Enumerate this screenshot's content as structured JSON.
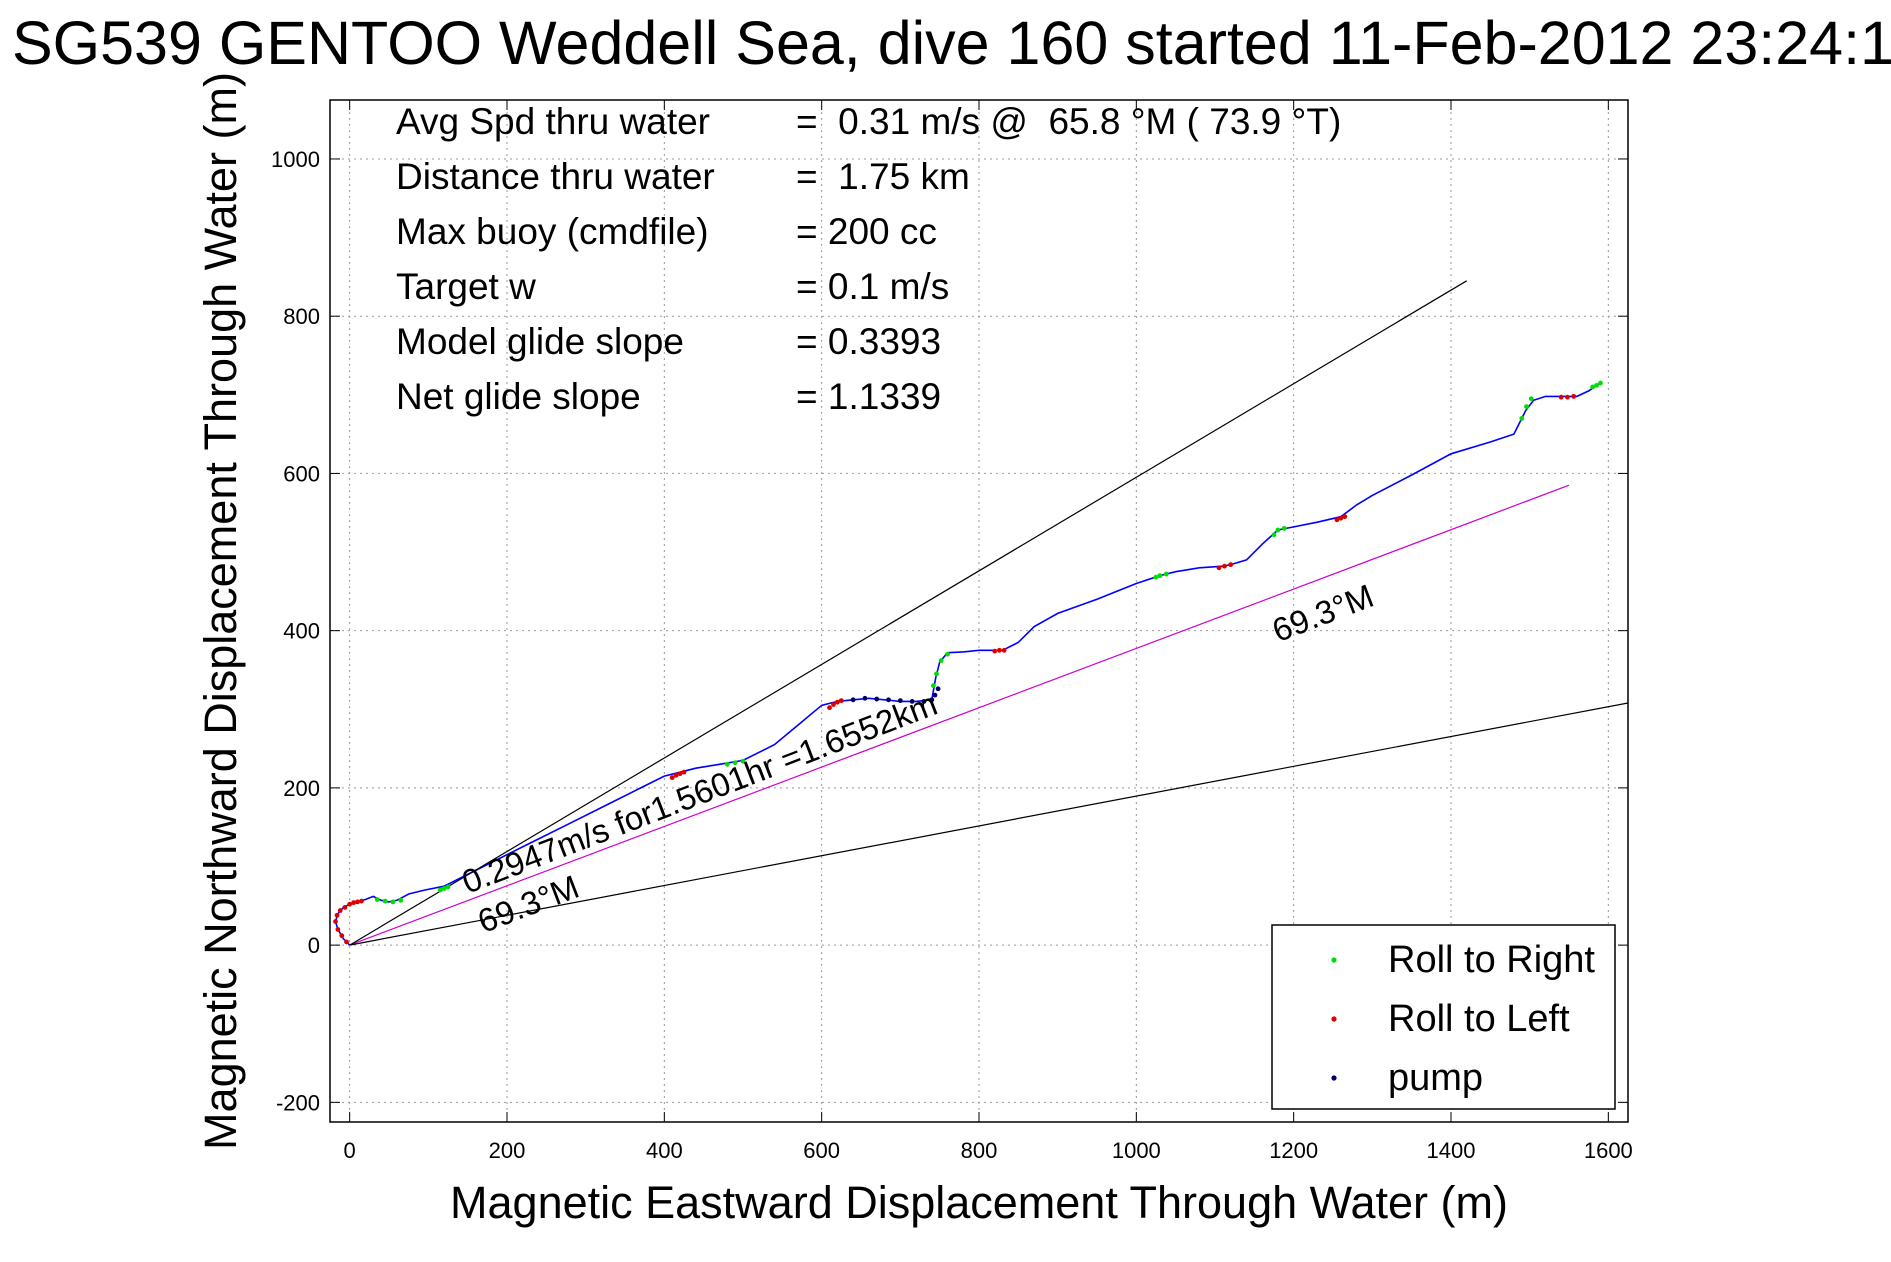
{
  "chart_data": {
    "type": "scatter",
    "title": "SG539 GENTOO Weddell Sea, dive 160 started 11-Feb-2012 23:24:1",
    "xlabel": "Magnetic Eastward Displacement Through Water (m)",
    "ylabel": "Magnetic Northward Displacement Through Water (m)",
    "xlim": [
      -25,
      1625
    ],
    "ylim": [
      -225,
      1075
    ],
    "xticks": [
      0,
      200,
      400,
      600,
      800,
      1000,
      1200,
      1400,
      1600
    ],
    "yticks": [
      -200,
      0,
      200,
      400,
      600,
      800,
      1000
    ],
    "grid": true,
    "legend": {
      "location": "bottom-right",
      "entries": [
        {
          "label": "Roll to Right",
          "color": "#00dd00"
        },
        {
          "label": "Roll to Left",
          "color": "#dd0000"
        },
        {
          "label": "pump",
          "color": "#000066"
        }
      ]
    },
    "stats": [
      {
        "label": "Avg Spd thru water",
        "value": "=  0.31 m/s @  65.8 °M ( 73.9 °T)"
      },
      {
        "label": "Distance thru water",
        "value": "=  1.75 km"
      },
      {
        "label": "Max buoy (cmdfile)",
        "value": "= 200 cc"
      },
      {
        "label": "Target w",
        "value": "= 0.1 m/s"
      },
      {
        "label": "Model glide slope",
        "value": "= 0.3393"
      },
      {
        "label": "Net glide slope",
        "value": "= 1.1339"
      }
    ],
    "annotations": [
      {
        "text": "0.2947m/s for1.5601hr =1.6552km",
        "x": 150,
        "y": 65,
        "angle_deg": 21
      },
      {
        "text": "69.3°M",
        "x": 170,
        "y": 15,
        "angle_deg": 21
      },
      {
        "text": "69.3°M",
        "x": 1180,
        "y": 385,
        "angle_deg": 21
      }
    ],
    "series": [
      {
        "style": "line",
        "color": "#0000ff",
        "x": [
          0,
          -8,
          -15,
          -18,
          -15,
          -8,
          0,
          10,
          20,
          30,
          40,
          50,
          60,
          75,
          95,
          120,
          150,
          190,
          230,
          280,
          330,
          370,
          400,
          420,
          440,
          470,
          500,
          540,
          570,
          600,
          620,
          640,
          660,
          680,
          700,
          720,
          740,
          745,
          750,
          760,
          780,
          800,
          830,
          850,
          870,
          900,
          950,
          1000,
          1030,
          1050,
          1080,
          1110,
          1120,
          1140,
          1160,
          1180,
          1200,
          1230,
          1260,
          1280,
          1300,
          1350,
          1400,
          1450,
          1480,
          1495,
          1505,
          1520,
          1540,
          1560,
          1575,
          1590
        ],
        "y": [
          0,
          8,
          20,
          30,
          40,
          48,
          52,
          55,
          58,
          62,
          57,
          55,
          57,
          65,
          70,
          75,
          90,
          110,
          130,
          155,
          180,
          200,
          215,
          220,
          225,
          230,
          235,
          255,
          280,
          305,
          310,
          312,
          314,
          312,
          310,
          310,
          312,
          340,
          360,
          372,
          373,
          375,
          375,
          385,
          405,
          422,
          440,
          460,
          470,
          475,
          480,
          482,
          484,
          490,
          510,
          528,
          532,
          538,
          545,
          560,
          572,
          598,
          625,
          640,
          650,
          680,
          693,
          698,
          698,
          698,
          705,
          715
        ]
      },
      {
        "style": "line",
        "color": "#cc00cc",
        "x": [
          0,
          1550
        ],
        "y": [
          0,
          585
        ]
      },
      {
        "style": "line",
        "color": "#000000",
        "x": [
          0,
          1420
        ],
        "y": [
          0,
          845
        ]
      },
      {
        "style": "line",
        "color": "#000000",
        "x": [
          0,
          1625
        ],
        "y": [
          0,
          308
        ]
      },
      {
        "name": "Roll to Right",
        "style": "marker",
        "color": "#00dd00",
        "x": [
          35,
          45,
          55,
          65,
          115,
          120,
          125,
          480,
          490,
          500,
          742,
          746,
          752,
          760,
          1025,
          1030,
          1038,
          1175,
          1180,
          1188,
          1490,
          1496,
          1502,
          1580,
          1585,
          1590
        ],
        "y": [
          58,
          56,
          55,
          57,
          70,
          72,
          74,
          230,
          232,
          234,
          330,
          345,
          362,
          370,
          468,
          470,
          472,
          522,
          528,
          530,
          670,
          685,
          695,
          710,
          712,
          715
        ]
      },
      {
        "name": "Roll to Left",
        "style": "marker",
        "color": "#dd0000",
        "x": [
          -4,
          -10,
          -15,
          -18,
          -16,
          -12,
          -6,
          0,
          5,
          10,
          15,
          410,
          415,
          420,
          425,
          610,
          615,
          620,
          625,
          820,
          826,
          832,
          1105,
          1112,
          1120,
          1255,
          1260,
          1265,
          1540,
          1548,
          1556
        ],
        "y": [
          4,
          12,
          20,
          30,
          38,
          44,
          48,
          52,
          54,
          55,
          56,
          213,
          216,
          218,
          220,
          302,
          306,
          309,
          311,
          374,
          375,
          375,
          480,
          482,
          484,
          541,
          543,
          545,
          697,
          697,
          698
        ]
      },
      {
        "name": "pump",
        "style": "marker",
        "color": "#000066",
        "x": [
          640,
          655,
          670,
          685,
          700,
          715,
          730,
          740,
          744,
          748
        ],
        "y": [
          312,
          314,
          313,
          312,
          311,
          310,
          310,
          312,
          318,
          326
        ]
      }
    ]
  }
}
